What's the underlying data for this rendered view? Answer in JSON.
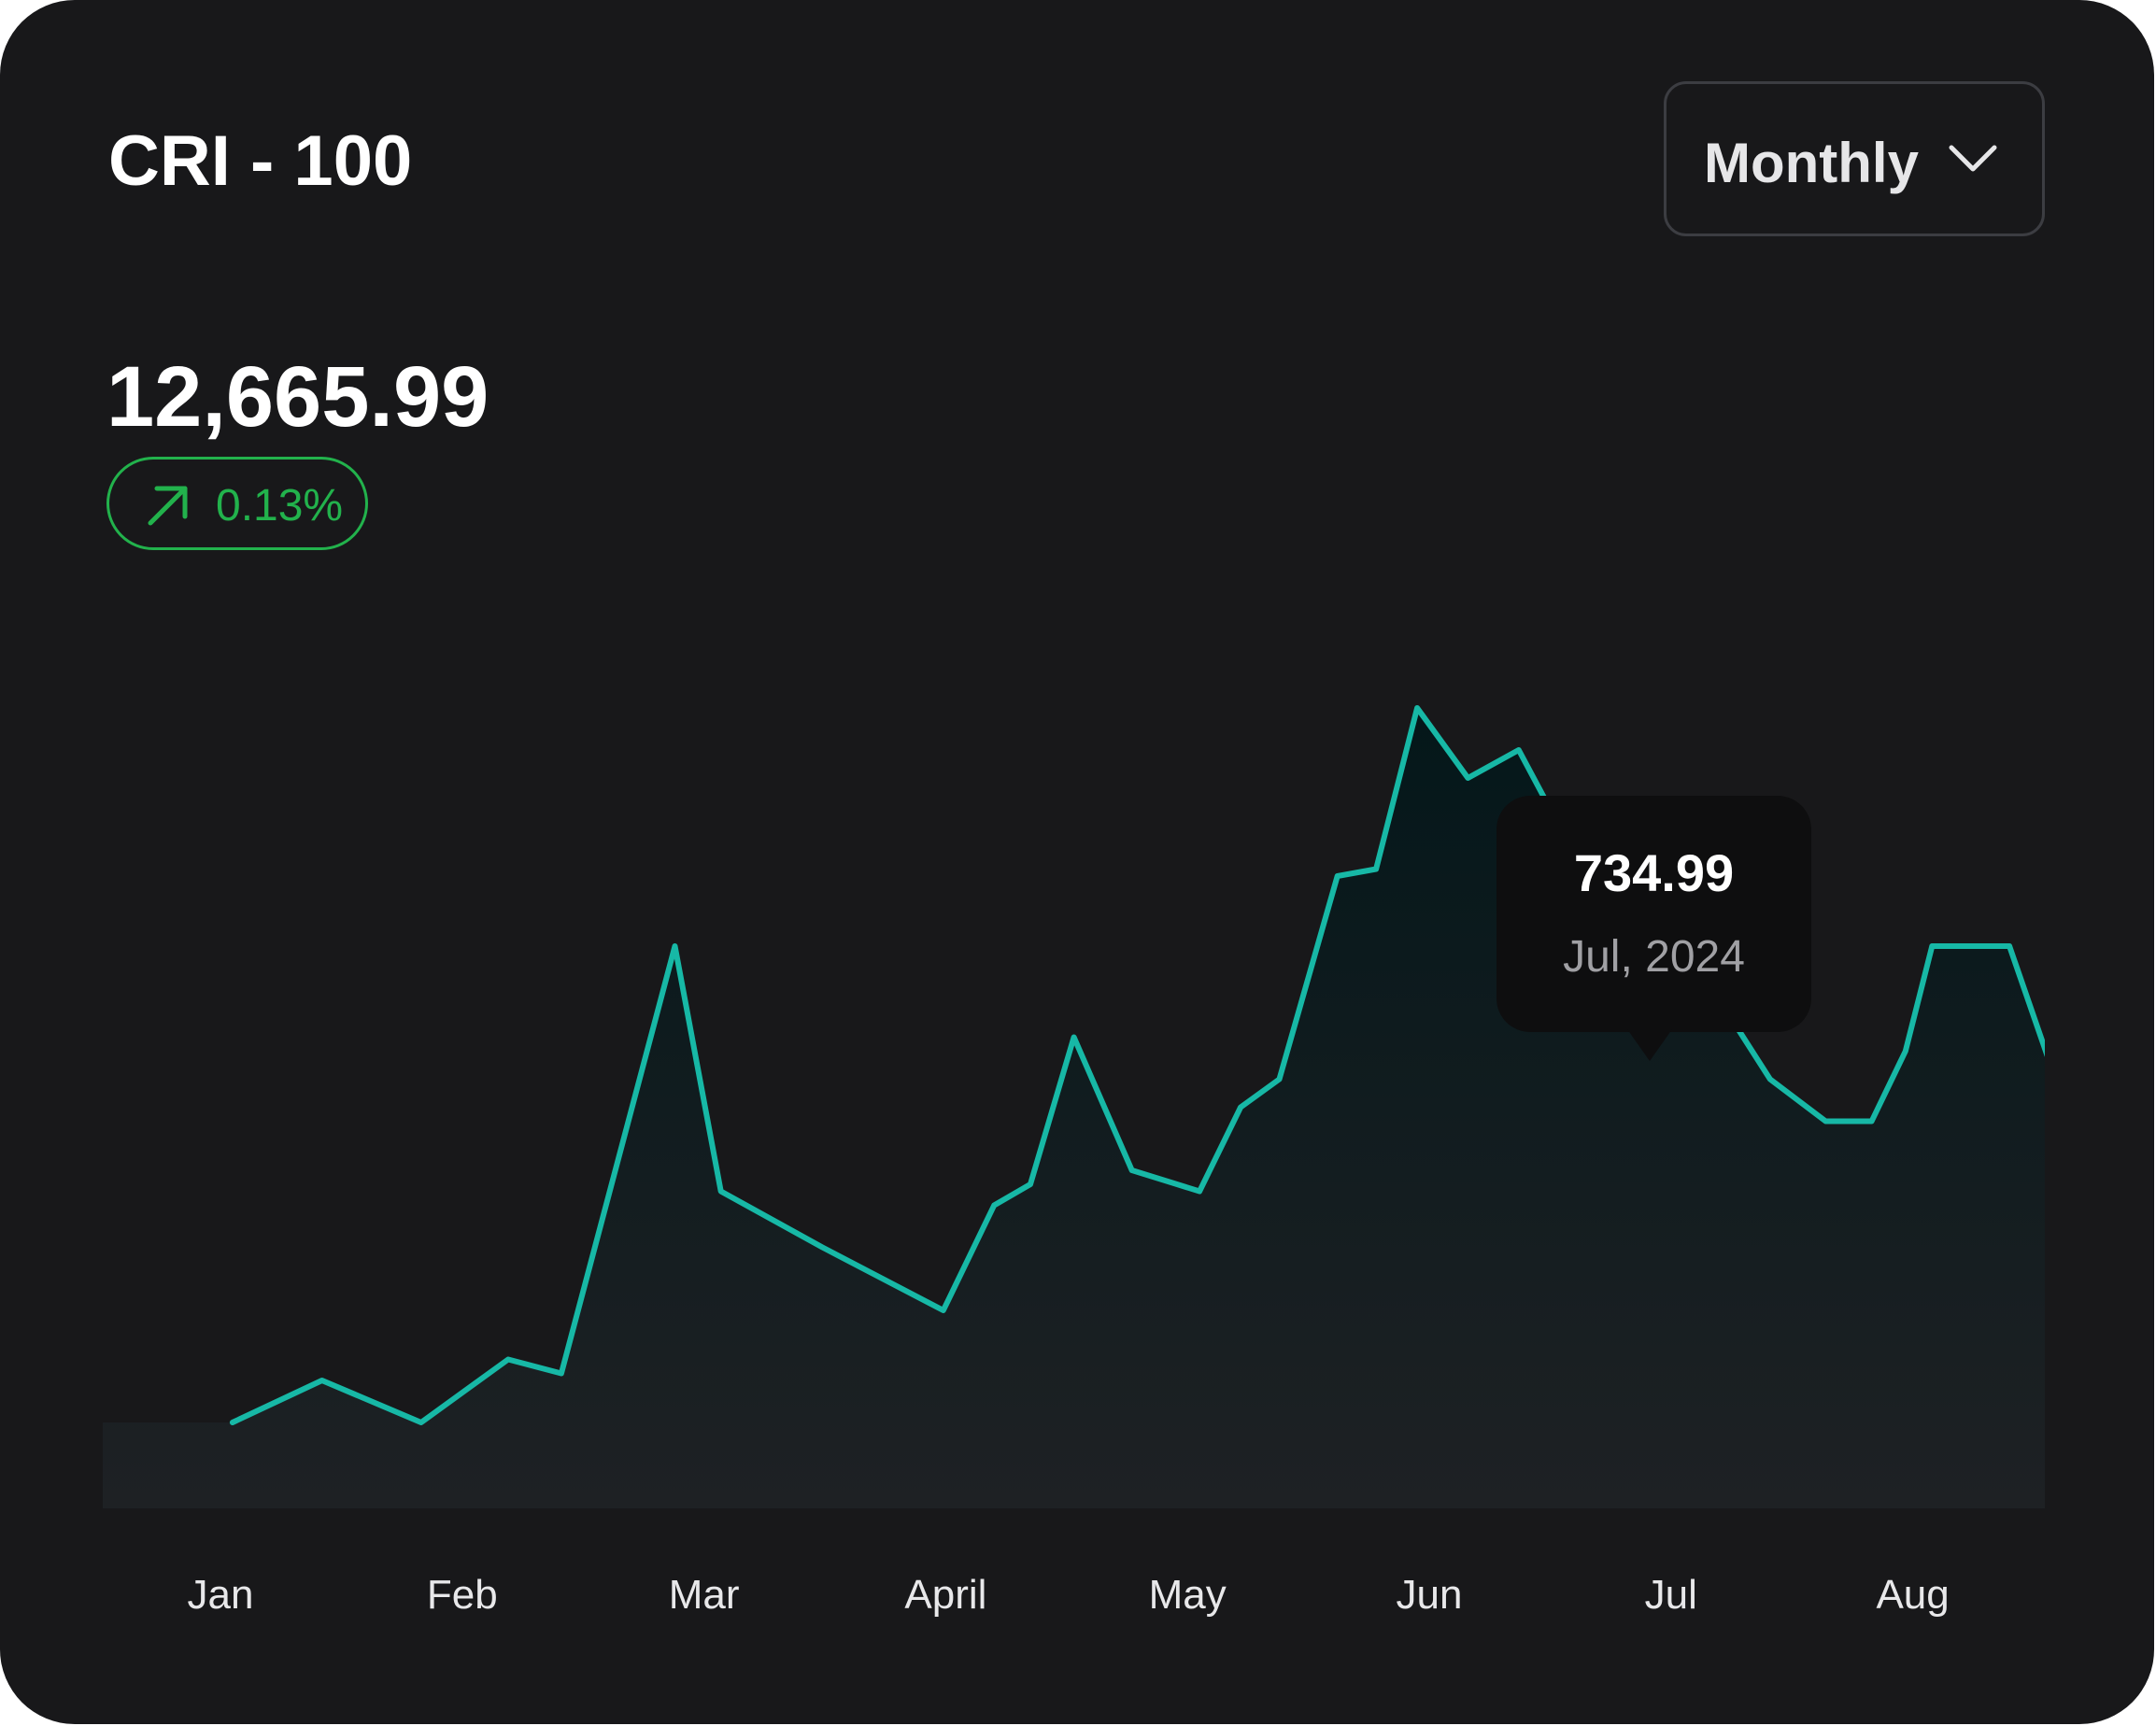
{
  "header": {
    "title": "CRI - 100",
    "period_select": {
      "selected": "Monthly",
      "icon": "chevron-down-icon"
    }
  },
  "summary": {
    "value": "12,665.99",
    "change": "0.13%",
    "change_icon": "arrow-up-right-icon",
    "change_color": "#22b24c"
  },
  "tooltip": {
    "value": "734.99",
    "date": "Jul, 2024"
  },
  "colors": {
    "background": "#18181a",
    "line": "#17b8a6",
    "badge": "#22b24c"
  },
  "chart_data": {
    "type": "area",
    "title": "CRI - 100",
    "xlabel": "",
    "ylabel": "",
    "categories": [
      "Jan",
      "Feb",
      "Mar",
      "April",
      "May",
      "Jun",
      "Jul",
      "Aug"
    ],
    "x": [
      0.05,
      0.42,
      0.83,
      1.19,
      1.41,
      1.88,
      2.07,
      2.49,
      2.99,
      3.2,
      3.35,
      3.53,
      3.77,
      4.05,
      4.22,
      4.38,
      4.62,
      4.78,
      4.95,
      5.16,
      5.37,
      5.71,
      5.91,
      6.41,
      6.64,
      6.83,
      6.97,
      7.08,
      7.29,
      7.4,
      7.61,
      7.79,
      8.22
    ],
    "series": [
      {
        "values": [
          12,
          18,
          12,
          21,
          19,
          80,
          45,
          37,
          28,
          43,
          46,
          67,
          48,
          45,
          57,
          61,
          90,
          91,
          114,
          104,
          108,
          86,
          88,
          61,
          55,
          55,
          65,
          80,
          80,
          80,
          59,
          59,
          51
        ]
      }
    ],
    "ylim": [
      0,
      155
    ],
    "grid": false,
    "legend": "none",
    "highlight": {
      "x": 6.64,
      "value": "734.99",
      "label": "Jul, 2024"
    }
  }
}
